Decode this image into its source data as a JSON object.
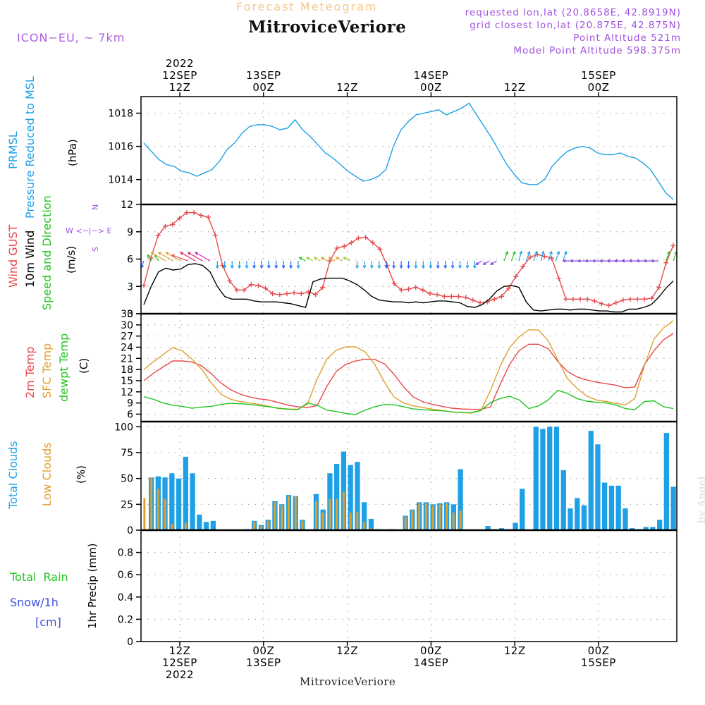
{
  "header": {
    "product": "Forecast Meteogram",
    "location": "MitroviceVeriore",
    "model": "ICON−EU, ~ 7km",
    "requested": "requested lon,lat (20.8658E, 42.8919N)",
    "closest": "grid closest lon,lat (20.875E, 42.875N)",
    "point_alt": "Point Altitude 521m",
    "model_alt": "Model Point Altitude 598.375m",
    "credit": "by Angel",
    "footer": "MitroviceVeriore"
  },
  "time_axis": {
    "top": [
      {
        "t": 12,
        "lines": [
          "2022",
          "12SEP",
          "12Z"
        ]
      },
      {
        "t": 24,
        "lines": [
          "13SEP",
          "00Z"
        ]
      },
      {
        "t": 36,
        "lines": [
          "12Z"
        ]
      },
      {
        "t": 48,
        "lines": [
          "14SEP",
          "00Z"
        ]
      },
      {
        "t": 60,
        "lines": [
          "12Z"
        ]
      },
      {
        "t": 72,
        "lines": [
          "15SEP",
          "00Z"
        ]
      }
    ],
    "bottom": [
      {
        "t": 12,
        "lines": [
          "12Z",
          "12SEP",
          "2022"
        ]
      },
      {
        "t": 24,
        "lines": [
          "00Z",
          "13SEP"
        ]
      },
      {
        "t": 36,
        "lines": [
          "12Z"
        ]
      },
      {
        "t": 48,
        "lines": [
          "00Z",
          "14SEP"
        ]
      },
      {
        "t": 60,
        "lines": [
          "12Z"
        ]
      },
      {
        "t": 72,
        "lines": [
          "00Z",
          "15SEP"
        ]
      }
    ]
  },
  "panel_labels": {
    "pressure": {
      "a": "PRMSL",
      "b": "Pressure Reduced to MSL",
      "unit": "(hPa)"
    },
    "wind": {
      "a": "Wind GUST",
      "b": "10m Wind",
      "c": "Speed and Direction",
      "unit": "(m/s)",
      "compass_n": "N",
      "compass_s": "S",
      "compass_row": "W <−|−> E"
    },
    "temp": {
      "a": "2m Temp",
      "b": "SFC Temp",
      "c": "dewpt Temp",
      "unit": "(C)"
    },
    "clouds": {
      "a": "Total Clouds",
      "b": "Low Clouds",
      "unit": "(%)"
    },
    "precip": {
      "a": "Total  Rain",
      "b": "Snow/1h",
      "c": "[cm]",
      "unit": "1hr Precip (mm)"
    }
  },
  "colors": {
    "pressure": "#1ea0e6",
    "gust": "#e8484b",
    "wind": "#000000",
    "temp2m": "#e8484b",
    "sfc": "#e0a030",
    "dewpt": "#22c422",
    "total_cloud": "#1ea0e6",
    "low_cloud": "#e0a030",
    "purple": "#a050e0",
    "rain": "#22c422",
    "snow": "#3c50e0",
    "title_orange": "#f5c888"
  },
  "chart_data": [
    {
      "type": "line",
      "id": "pressure",
      "ylabel": "(hPa)",
      "ylim": [
        1012.5,
        1019.0
      ],
      "yticks": [
        1014,
        1016,
        1018
      ],
      "series": [
        {
          "name": "PRMSL",
          "x": [
            0,
            1,
            2,
            3,
            4,
            5,
            6,
            7,
            8,
            9,
            10,
            11,
            12,
            13,
            14,
            15,
            16,
            17,
            18,
            19,
            20,
            21,
            22,
            23,
            24,
            25,
            26,
            27,
            28,
            29,
            30,
            31,
            32,
            33,
            34,
            35,
            36,
            37,
            38,
            39,
            40,
            41,
            42,
            43,
            44,
            45,
            46,
            47,
            48,
            49,
            50,
            51,
            52,
            53,
            54,
            55,
            56,
            57,
            58,
            59,
            60,
            61,
            62,
            63,
            64,
            65,
            66,
            67,
            68,
            69,
            70,
            71,
            72,
            73,
            74,
            75,
            76
          ],
          "values": [
            1016.2,
            1015.7,
            1015.2,
            1014.9,
            1014.8,
            1014.5,
            1014.4,
            1014.2,
            1014.4,
            1014.6,
            1015.1,
            1015.8,
            1016.2,
            1016.8,
            1017.2,
            1017.3,
            1017.3,
            1017.2,
            1017.0,
            1017.1,
            1017.6,
            1017.0,
            1016.6,
            1016.1,
            1015.6,
            1015.3,
            1014.9,
            1014.5,
            1014.2,
            1013.9,
            1014.0,
            1014.2,
            1014.6,
            1016.0,
            1017.0,
            1017.5,
            1017.9,
            1018.0,
            1018.1,
            1018.2,
            1017.9,
            1018.1,
            1018.3,
            1018.6,
            1017.9,
            1017.2,
            1016.5,
            1015.7,
            1014.9,
            1014.3,
            1013.8,
            1013.7,
            1013.7,
            1014.0,
            1014.8,
            1015.3,
            1015.7,
            1015.9,
            1016.0,
            1015.9,
            1015.6,
            1015.5,
            1015.5,
            1015.6,
            1015.4,
            1015.3,
            1015.0,
            1014.6,
            1013.9,
            1013.2,
            1012.8,
            null,
            null,
            null,
            null,
            null,
            null
          ]
        }
      ]
    },
    {
      "type": "line",
      "id": "wind",
      "ylabel": "(m/s)",
      "ylim": [
        0,
        12
      ],
      "yticks": [
        0,
        3,
        6,
        9,
        12
      ],
      "series": [
        {
          "name": "Wind GUST",
          "values": [
            3.1,
            6.1,
            8.6,
            9.6,
            9.8,
            10.5,
            11.1,
            11.1,
            10.8,
            10.6,
            8.6,
            5.3,
            3.6,
            2.6,
            2.6,
            3.2,
            3.1,
            2.8,
            2.2,
            2.1,
            2.2,
            2.3,
            2.2,
            2.4,
            2.1,
            2.9,
            5.8,
            7.2,
            7.4,
            7.8,
            8.3,
            8.4,
            7.8,
            7.1,
            5.3,
            3.3,
            2.6,
            2.7,
            2.9,
            2.6,
            2.2,
            2.1,
            1.9,
            1.9,
            1.9,
            1.8,
            1.5,
            1.2,
            1.3,
            1.6,
            1.9,
            2.8,
            4.1,
            5.2,
            6.2,
            6.5,
            6.3,
            6.1,
            3.9,
            1.6,
            1.6,
            1.6,
            1.6,
            1.4,
            1.1,
            0.9,
            1.2,
            1.5,
            1.6,
            1.6,
            1.6,
            1.7,
            2.9,
            5.6,
            7.5
          ]
        },
        {
          "name": "10m Wind",
          "values": [
            1.0,
            3.0,
            4.6,
            5.0,
            4.8,
            4.9,
            5.4,
            5.5,
            5.3,
            4.6,
            3.0,
            1.9,
            1.6,
            1.6,
            1.6,
            1.4,
            1.3,
            1.3,
            1.3,
            1.2,
            1.1,
            0.9,
            0.7,
            3.5,
            3.8,
            3.9,
            3.9,
            3.9,
            3.6,
            3.2,
            2.6,
            1.9,
            1.5,
            1.4,
            1.3,
            1.3,
            1.2,
            1.3,
            1.2,
            1.3,
            1.4,
            1.4,
            1.3,
            1.2,
            0.8,
            0.7,
            1.0,
            1.6,
            2.5,
            3.0,
            3.1,
            2.9,
            1.3,
            0.4,
            0.3,
            0.4,
            0.5,
            0.5,
            0.4,
            0.5,
            0.5,
            0.4,
            0.3,
            0.3,
            0.2,
            0.2,
            0.5,
            0.5,
            0.7,
            1.0,
            1.8,
            2.8,
            3.6
          ]
        }
      ],
      "arrow_colors": [
        "#1e64ff",
        "#22c422",
        "#22c422",
        "#e0a030",
        "#e0a030",
        "#e0a030",
        "#e8484b",
        "#e0206e",
        "#e0206e",
        "#d020c0",
        "#1ea0e6",
        "#1ea0e6",
        "#1ea0e6",
        "#1ea0e6",
        "#1ea0e6",
        "#1e64ff",
        "#1e64ff",
        "#1e64ff",
        "#1e64ff",
        "#1e64ff",
        "#1e64ff",
        "#1ea0e6",
        "#22c422",
        "#a0c83c",
        "#a0c83c",
        "#e0a030",
        "#e0a030",
        "#e0a030",
        "#a0c83c",
        "#1ea0e6",
        "#1ea0e6",
        "#1ea0e6",
        "#1ea0e6",
        "#1e64ff",
        "#1e64ff",
        "#1e64ff",
        "#1e64ff",
        "#1ea0e6",
        "#1ea0e6",
        "#1ea0e6",
        "#1e64ff",
        "#1e64ff",
        "#1e64ff",
        "#1ea0e6",
        "#1ea0e6",
        "#1ea0e6",
        "#8040e0",
        "#8040e0",
        "#8040e0",
        "#22c422",
        "#22c422",
        "#1ea0e6",
        "#1ea0e6",
        "#1ea0e6",
        "#1ea0e6",
        "#1ea0e6",
        "#1ea0e6",
        "#1ea0e6",
        "#8040e0",
        "#8040e0",
        "#8040e0",
        "#8040e0",
        "#8040e0",
        "#8040e0",
        "#8040e0",
        "#8040e0",
        "#8040e0",
        "#8040e0",
        "#8040e0",
        "#8040e0",
        "#8040e0",
        "#22c422",
        "#22c422"
      ],
      "arrow_dirs": [
        200,
        330,
        330,
        300,
        300,
        300,
        290,
        300,
        300,
        300,
        180,
        180,
        180,
        180,
        180,
        180,
        180,
        180,
        180,
        180,
        180,
        180,
        300,
        300,
        300,
        300,
        300,
        300,
        300,
        180,
        180,
        180,
        180,
        180,
        180,
        180,
        180,
        180,
        180,
        180,
        180,
        180,
        180,
        180,
        180,
        180,
        240,
        240,
        240,
        20,
        20,
        15,
        20,
        20,
        15,
        20,
        20,
        20,
        270,
        270,
        270,
        270,
        270,
        270,
        270,
        270,
        270,
        270,
        270,
        270,
        270,
        20,
        20
      ]
    },
    {
      "type": "line",
      "id": "temperature",
      "ylabel": "(C)",
      "ylim": [
        4,
        33
      ],
      "yticks": [
        6,
        9,
        12,
        15,
        18,
        21,
        24,
        27,
        30,
        33
      ],
      "series": [
        {
          "name": "2m Temp",
          "values": [
            15.0,
            17.0,
            18.7,
            20.3,
            20.3,
            20.0,
            19.0,
            16.9,
            14.4,
            12.6,
            11.4,
            10.6,
            10.1,
            9.8,
            9.1,
            8.4,
            8.0,
            7.8,
            8.3,
            13.4,
            17.5,
            19.4,
            20.3,
            20.8,
            20.7,
            19.5,
            16.7,
            13.3,
            10.6,
            9.3,
            8.6,
            8.1,
            7.6,
            7.4,
            7.3,
            7.3,
            7.9,
            13.9,
            19.4,
            23.1,
            24.8,
            24.8,
            23.6,
            20.2,
            17.5,
            16.0,
            15.2,
            14.6,
            14.2,
            13.8,
            13.1,
            13.3,
            19.3,
            23.1,
            26.0,
            27.7
          ]
        },
        {
          "name": "SFC Temp",
          "values": [
            18.0,
            20.1,
            22.0,
            23.9,
            23.0,
            20.8,
            18.1,
            14.4,
            11.4,
            10.0,
            9.4,
            9.0,
            8.6,
            8.1,
            7.5,
            7.4,
            7.3,
            8.7,
            15.4,
            20.8,
            23.2,
            24.1,
            24.1,
            22.7,
            19.3,
            14.6,
            10.6,
            9.0,
            8.2,
            7.8,
            7.3,
            7.0,
            6.6,
            6.4,
            6.3,
            6.9,
            12.3,
            18.8,
            23.9,
            26.8,
            28.7,
            28.6,
            25.8,
            20.6,
            15.6,
            12.9,
            10.9,
            9.8,
            9.4,
            8.9,
            8.5,
            10.2,
            19.0,
            26.2,
            29.2,
            31.1
          ]
        },
        {
          "name": "dewpt Temp",
          "values": [
            10.7,
            10.0,
            9.0,
            8.4,
            8.1,
            7.6,
            7.9,
            8.1,
            8.6,
            8.9,
            8.8,
            8.6,
            8.3,
            8.0,
            7.6,
            7.3,
            7.2,
            9.0,
            8.4,
            7.1,
            6.7,
            6.2,
            5.9,
            7.1,
            8.0,
            8.6,
            8.5,
            8.0,
            7.4,
            7.2,
            7.0,
            6.9,
            6.6,
            6.4,
            6.4,
            7.0,
            9.1,
            10.2,
            10.8,
            9.8,
            7.5,
            8.2,
            9.8,
            12.4,
            11.6,
            10.2,
            9.5,
            9.2,
            9.0,
            8.5,
            7.5,
            7.2,
            9.4,
            9.6,
            8.0,
            7.5
          ]
        }
      ]
    },
    {
      "type": "bar",
      "id": "clouds",
      "ylabel": "(%)",
      "ylim": [
        0,
        105
      ],
      "yticks": [
        0,
        25,
        50,
        75,
        100
      ],
      "series": [
        {
          "name": "Total Clouds",
          "values": [
            null,
            51,
            52,
            51,
            55,
            50,
            71,
            55,
            15,
            8,
            9,
            0,
            0,
            0,
            0,
            1,
            9,
            5,
            10,
            28,
            25,
            34,
            33,
            10,
            0,
            35,
            20,
            55,
            64,
            76,
            63,
            66,
            27,
            11,
            1,
            0,
            1,
            0,
            14,
            20,
            27,
            27,
            25,
            26,
            27,
            25,
            59,
            0,
            0,
            0,
            4,
            1,
            2,
            1,
            7,
            40,
            0,
            100,
            98,
            100,
            100,
            58,
            21,
            31,
            24,
            96,
            83,
            46,
            43,
            43,
            21,
            2,
            1,
            3,
            3,
            10,
            94,
            42
          ]
        },
        {
          "name": "Low Clouds",
          "values": [
            31,
            51,
            40,
            30,
            6,
            0,
            7,
            0,
            0,
            0,
            0,
            0,
            0,
            0,
            0,
            0,
            8,
            4,
            9,
            27,
            24,
            33,
            33,
            9,
            0,
            28,
            17,
            30,
            30,
            37,
            17,
            18,
            8,
            2,
            0,
            0,
            0,
            0,
            13,
            19,
            26,
            26,
            24,
            25,
            26,
            17,
            19,
            0,
            0,
            0,
            0,
            0,
            0,
            0,
            0,
            0,
            0,
            0,
            0,
            0,
            0,
            0,
            0,
            0,
            0,
            0,
            0,
            0,
            0,
            0,
            0,
            0,
            0,
            0,
            0,
            0,
            0,
            0
          ]
        }
      ]
    },
    {
      "type": "bar",
      "id": "precipitation",
      "ylabel": "1hr Precip (mm)",
      "ylim": [
        0,
        1.0
      ],
      "yticks": [
        0,
        0.2,
        0.4,
        0.6,
        0.8
      ],
      "ytick_labels": [
        "0",
        "0.2",
        "0.4",
        "0.6",
        "0.8"
      ],
      "series": [
        {
          "name": "Total Rain",
          "values": []
        },
        {
          "name": "Snow/1h",
          "values": []
        }
      ]
    }
  ]
}
